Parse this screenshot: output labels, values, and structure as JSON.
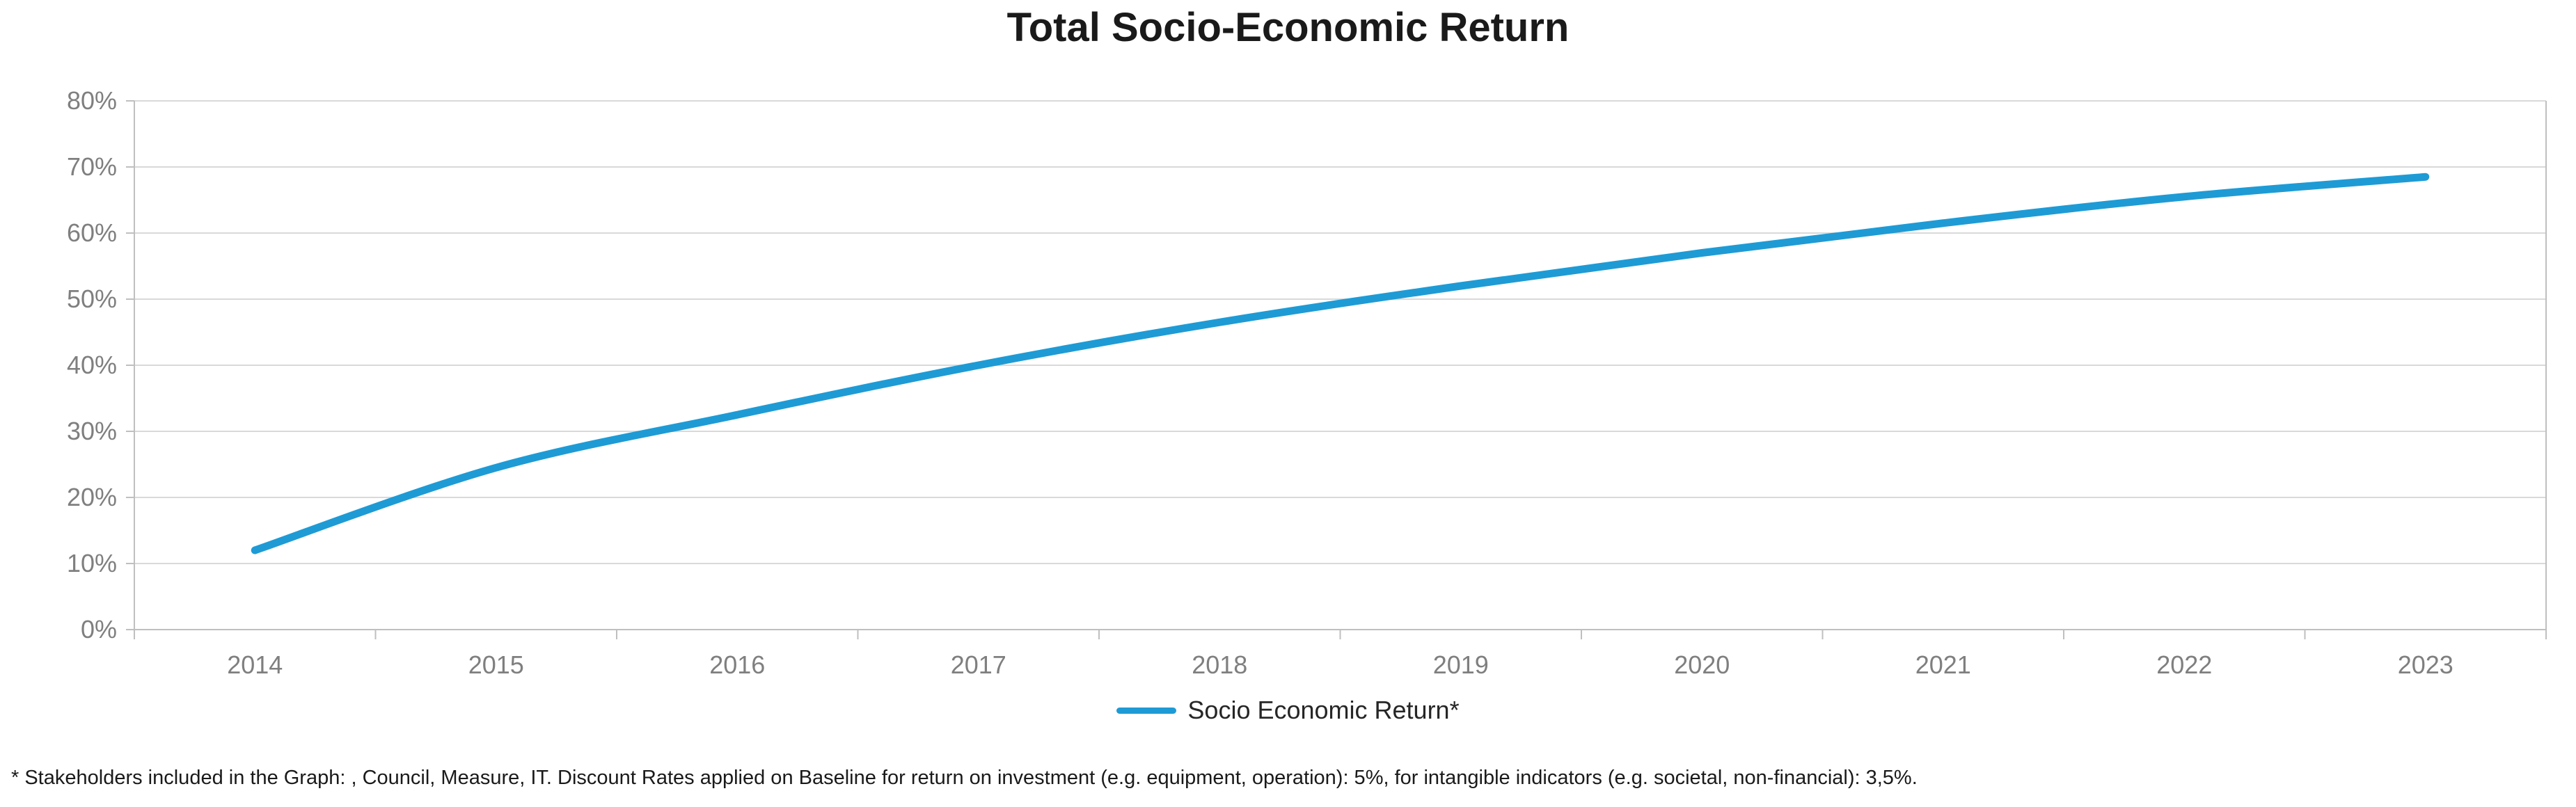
{
  "title": "Total Socio-Economic Return",
  "legend": {
    "label": "Socio Economic Return*"
  },
  "footnote": "* Stakeholders included in the Graph: , Council, Measure, IT. Discount Rates applied on Baseline for return on investment (e.g. equipment, operation): 5%, for intangible indicators (e.g. societal, non-financial): 3,5%.",
  "colors": {
    "series": "#1E9BD5",
    "gridline": "#D9D9D9",
    "axis": "#BFBFBF",
    "tick_label": "#7F7F7F",
    "title_text": "#1A1A1A",
    "legend_text": "#262626",
    "footnote_text": "#1A1A1A",
    "background": "#FFFFFF"
  },
  "chart_data": {
    "type": "line",
    "title": "Total Socio-Economic Return",
    "x": [
      "2014",
      "2015",
      "2016",
      "2017",
      "2018",
      "2019",
      "2020",
      "2021",
      "2022",
      "2023"
    ],
    "series": [
      {
        "name": "Socio Economic Return*",
        "values": [
          12,
          24.5,
          32.5,
          40,
          46.5,
          52,
          57,
          61.5,
          65.5,
          68.5
        ]
      }
    ],
    "xlabel": "",
    "ylabel": "",
    "ylim": [
      0,
      80
    ],
    "y_tick_step": 10,
    "y_tick_labels": [
      "0%",
      "10%",
      "20%",
      "30%",
      "40%",
      "50%",
      "60%",
      "70%",
      "80%"
    ],
    "grid": "horizontal",
    "legend_position": "bottom",
    "smooth": true,
    "line_width": 11
  }
}
